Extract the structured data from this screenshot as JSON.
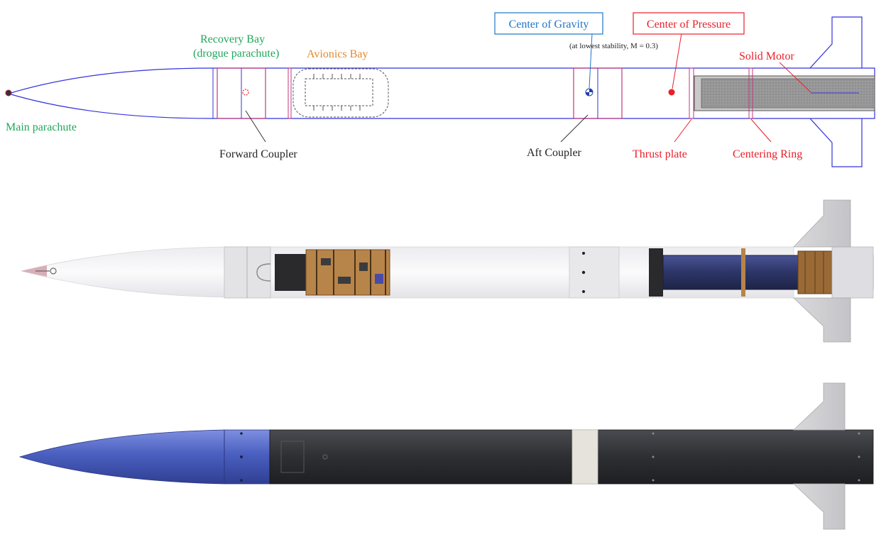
{
  "labels": {
    "main_parachute": "Main parachute",
    "recovery_bay_line1": "Recovery Bay",
    "recovery_bay_line2": "(drogue parachute)",
    "avionics_bay": "Avionics Bay",
    "forward_coupler": "Forward Coupler",
    "center_of_gravity": "Center of Gravity",
    "cg_note": "(at lowest stability, M = 0.3)",
    "aft_coupler": "Aft Coupler",
    "center_of_pressure": "Center of Pressure",
    "thrust_plate": "Thrust plate",
    "solid_motor": "Solid Motor",
    "centering_ring": "Centering Ring"
  },
  "colors": {
    "outline_blue": "#3333dd",
    "coupler_magenta": "#c0397a",
    "green_label": "#1fa85a",
    "orange_label": "#e08a30",
    "red_label": "#e8202a",
    "cg_blue": "#1f74c8",
    "nose_blue": "#4a5fc0",
    "body_dark": "#2e2f33",
    "motor_navy": "#2c3566",
    "wood": "#a9753e"
  }
}
